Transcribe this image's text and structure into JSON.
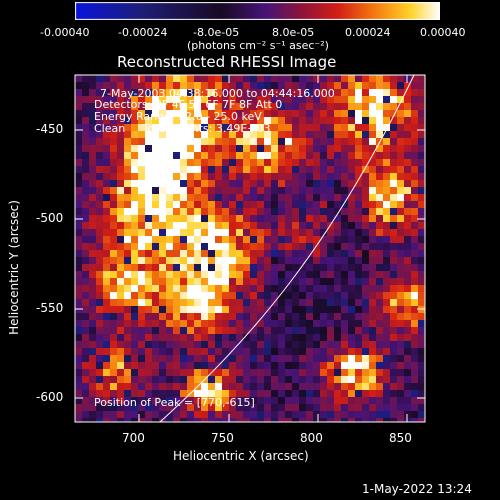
{
  "colorbar": {
    "ticks": [
      "-0.00040",
      "-0.00024",
      "-8.0e-05",
      "8.0e-05",
      "0.00024",
      "0.00040"
    ],
    "unit_label": "(photons cm⁻² s⁻¹ asec⁻²)"
  },
  "plot": {
    "title": "Reconstructed RHESSI Image",
    "info_lines": [
      "7-May-2003 04:38:16.000 to 04:44:16.000",
      "Detectors: 3F 4F 5F 6F 7F 8F Att 0",
      "Energy Range: 12.0 - 25.0 keV",
      "Clean     Total counts: 3.49E+03"
    ],
    "peak_text": "Position of Peak = [770,-615]",
    "xlabel": "Heliocentric X (arcsec)",
    "ylabel": "Heliocentric Y (arcsec)",
    "x_ticks": [
      "700",
      "750",
      "800",
      "850"
    ],
    "y_ticks": [
      "-450",
      "-500",
      "-550",
      "-600"
    ]
  },
  "footer": {
    "timestamp": "1-May-2022 13:24"
  },
  "chart_data": {
    "type": "heatmap",
    "title": "Reconstructed RHESSI Image",
    "xlabel": "Heliocentric X (arcsec)",
    "ylabel": "Heliocentric Y (arcsec)",
    "xlim": [
      666,
      858
    ],
    "ylim": [
      -615,
      -418
    ],
    "colorbar_range": [
      -0.0004,
      0.0004
    ],
    "colormap": "blue-black-red-yellow-white",
    "peak_position": [
      770,
      -615
    ],
    "limb_line": true,
    "grid": false
  }
}
